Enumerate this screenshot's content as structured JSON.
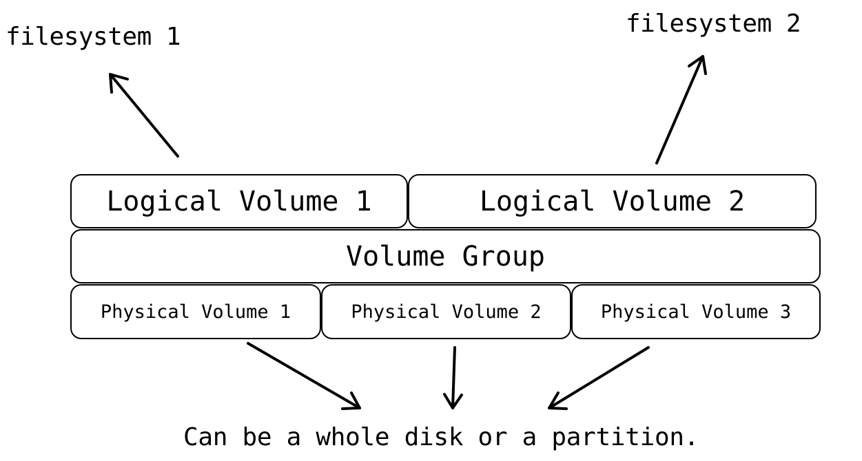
{
  "filesystems": [
    {
      "label": "filesystem 1"
    },
    {
      "label": "filesystem 2"
    }
  ],
  "logical_volumes": [
    {
      "label": "Logical Volume 1"
    },
    {
      "label": "Logical Volume 2"
    }
  ],
  "volume_group": {
    "label": "Volume Group"
  },
  "physical_volumes": [
    {
      "label": "Physical Volume 1"
    },
    {
      "label": "Physical Volume 2"
    },
    {
      "label": "Physical Volume 3"
    }
  ],
  "note": {
    "text": "Can be a whole disk or a partition."
  },
  "colors": {
    "stroke": "#000000",
    "background": "#ffffff"
  },
  "icons": {
    "arrow": "arrow-icon"
  }
}
